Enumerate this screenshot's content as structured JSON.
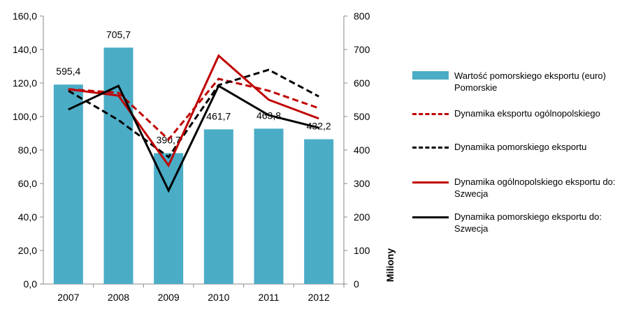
{
  "chart_data": {
    "type": "bar",
    "categories": [
      "2007",
      "2008",
      "2009",
      "2010",
      "2011",
      "2012"
    ],
    "series": [
      {
        "name": "Wartość pomorskiego eksportu (euro) Pomorskie",
        "type": "bar",
        "axis": "y2",
        "color": "#4bacc6",
        "values": [
          595.4,
          705.7,
          390.7,
          461.7,
          463.8,
          432.2
        ],
        "value_labels": [
          "595,4",
          "705,7",
          "390,7",
          "461,7",
          "463,8",
          "432,2"
        ]
      },
      {
        "name": "Dynamika eksportu ogólnopolskiego",
        "type": "line",
        "dashed": true,
        "color": "#c00000",
        "values": [
          116.3,
          114.2,
          86.3,
          122.5,
          115.4,
          105
        ]
      },
      {
        "name": "Dynamika pomorskiego eksportu",
        "type": "line",
        "dashed": true,
        "color": "#000000",
        "values": [
          115.4,
          97.9,
          75.8,
          118.8,
          127.9,
          112
        ]
      },
      {
        "name": "Dynamika ogólnopolskiego eksportu do: Szwecja",
        "type": "line",
        "dashed": false,
        "color": "#c00000",
        "values": [
          116.3,
          112.5,
          70.8,
          136.3,
          110,
          98.8
        ]
      },
      {
        "name": "Dynamika pomorskiego eksportu do: Szwecja",
        "type": "line",
        "dashed": false,
        "color": "#000000",
        "values": [
          104.2,
          118.3,
          55.8,
          118.3,
          100.8,
          93.3
        ]
      }
    ],
    "ylim": [
      0,
      160
    ],
    "yticks": [
      {
        "value": 0,
        "label": "0,0"
      },
      {
        "value": 20,
        "label": "20,0"
      },
      {
        "value": 40,
        "label": "40,0"
      },
      {
        "value": 60,
        "label": "60,0"
      },
      {
        "value": 80,
        "label": "80,0"
      },
      {
        "value": 100,
        "label": "100,0"
      },
      {
        "value": 120,
        "label": "120,0"
      },
      {
        "value": 140,
        "label": "140,0"
      },
      {
        "value": 160,
        "label": "160,0"
      }
    ],
    "y2lim": [
      0,
      800
    ],
    "y2ticks": [
      0,
      100,
      200,
      300,
      400,
      500,
      600,
      700,
      800
    ],
    "y2label": "Miliony",
    "legend": "right"
  }
}
